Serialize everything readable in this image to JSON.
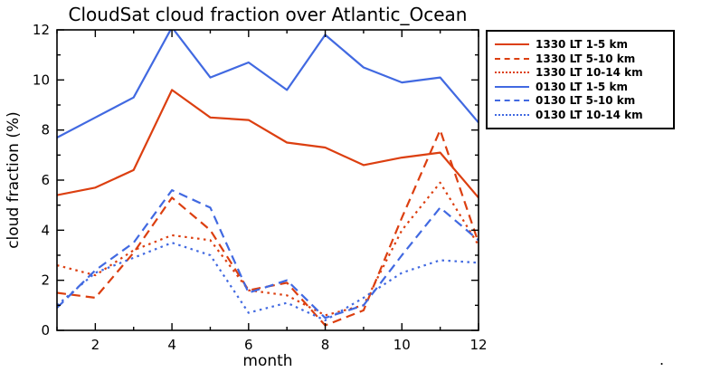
{
  "chart_data": {
    "type": "line",
    "title": "CloudSat cloud fraction over Atlantic_Ocean",
    "xlabel": "month",
    "ylabel": "cloud fraction (%)",
    "xlim": [
      1,
      12
    ],
    "ylim": [
      0,
      12
    ],
    "x": [
      1,
      2,
      3,
      4,
      5,
      6,
      7,
      8,
      9,
      10,
      11,
      12
    ],
    "xticks_labeled": [
      2,
      4,
      6,
      8,
      10,
      12
    ],
    "yticks_labeled": [
      0,
      2,
      4,
      6,
      8,
      10,
      12
    ],
    "grid": false,
    "legend_position": "outside-top-right",
    "axis_color": "#000000",
    "colors": {
      "daytime_red": "#dc3f10",
      "nighttime_blue": "#4169e1"
    },
    "series": [
      {
        "name": "1330 LT 1-5 km",
        "color": "#dc3f10",
        "style": "solid",
        "values": [
          5.4,
          5.7,
          6.4,
          9.6,
          8.5,
          8.4,
          7.5,
          7.3,
          6.6,
          6.9,
          7.1,
          5.3
        ]
      },
      {
        "name": "1330 LT 5-10 km",
        "color": "#dc3f10",
        "style": "dashed",
        "values": [
          1.5,
          1.3,
          3.1,
          5.3,
          4.0,
          1.6,
          1.9,
          0.2,
          0.8,
          4.5,
          8.0,
          3.5
        ]
      },
      {
        "name": "1330 LT 10-14 km",
        "color": "#dc3f10",
        "style": "dotted",
        "values": [
          2.6,
          2.2,
          3.2,
          3.8,
          3.6,
          1.6,
          1.4,
          0.6,
          1.0,
          4.0,
          5.9,
          3.4
        ]
      },
      {
        "name": "0130 LT 1-5 km",
        "color": "#4169e1",
        "style": "solid",
        "values": [
          7.7,
          8.5,
          9.3,
          12.1,
          10.1,
          10.7,
          9.6,
          11.8,
          10.5,
          9.9,
          10.1,
          8.3
        ]
      },
      {
        "name": "0130 LT 5-10 km",
        "color": "#4169e1",
        "style": "dashed",
        "values": [
          0.9,
          2.4,
          3.5,
          5.6,
          4.9,
          1.5,
          2.0,
          0.5,
          1.0,
          3.0,
          4.9,
          3.6
        ]
      },
      {
        "name": "0130 LT 10-14 km",
        "color": "#4169e1",
        "style": "dotted",
        "values": [
          1.0,
          2.3,
          2.9,
          3.5,
          3.0,
          0.7,
          1.1,
          0.4,
          1.3,
          2.3,
          2.8,
          2.7
        ]
      }
    ],
    "stray_mark": "."
  }
}
